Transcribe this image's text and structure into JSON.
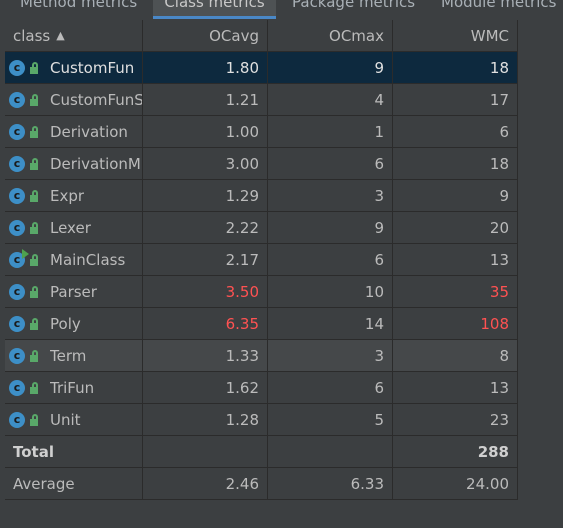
{
  "tabs": [
    {
      "label": "Method metrics"
    },
    {
      "label": "Class metrics"
    },
    {
      "label": "Package metrics"
    },
    {
      "label": "Module metrics"
    }
  ],
  "table": {
    "columns": [
      "class",
      "OCavg",
      "OCmax",
      "WMC"
    ],
    "sort_icon": "sort-ascending-icon",
    "rows": [
      {
        "name": "CustomFun",
        "ocavg": "1.80",
        "ocmax": "9",
        "wmc": "18"
      },
      {
        "name": "CustomFunSimp",
        "ocavg": "1.21",
        "ocmax": "4",
        "wmc": "17"
      },
      {
        "name": "Derivation",
        "ocavg": "1.00",
        "ocmax": "1",
        "wmc": "6"
      },
      {
        "name": "DerivationMulti",
        "ocavg": "3.00",
        "ocmax": "6",
        "wmc": "18"
      },
      {
        "name": "Expr",
        "ocavg": "1.29",
        "ocmax": "3",
        "wmc": "9"
      },
      {
        "name": "Lexer",
        "ocavg": "2.22",
        "ocmax": "9",
        "wmc": "20"
      },
      {
        "name": "MainClass",
        "ocavg": "2.17",
        "ocmax": "6",
        "wmc": "13"
      },
      {
        "name": "Parser",
        "ocavg": "3.50",
        "ocmax": "10",
        "wmc": "35"
      },
      {
        "name": "Poly",
        "ocavg": "6.35",
        "ocmax": "14",
        "wmc": "108"
      },
      {
        "name": "Term",
        "ocavg": "1.33",
        "ocmax": "3",
        "wmc": "8"
      },
      {
        "name": "TriFun",
        "ocavg": "1.62",
        "ocmax": "6",
        "wmc": "13"
      },
      {
        "name": "Unit",
        "ocavg": "1.28",
        "ocmax": "5",
        "wmc": "23"
      }
    ],
    "total": {
      "label": "Total",
      "ocavg": "",
      "ocmax": "",
      "wmc": "288"
    },
    "average": {
      "label": "Average",
      "ocavg": "2.46",
      "ocmax": "6.33",
      "wmc": "24.00"
    }
  },
  "colors": {
    "background": "#3c3f41",
    "selection": "#0d293e",
    "warning_red": "#ff5252",
    "class_icon_blue": "#3d8fc7",
    "access_green": "#59a869",
    "tab_underline": "#4a88c7"
  }
}
